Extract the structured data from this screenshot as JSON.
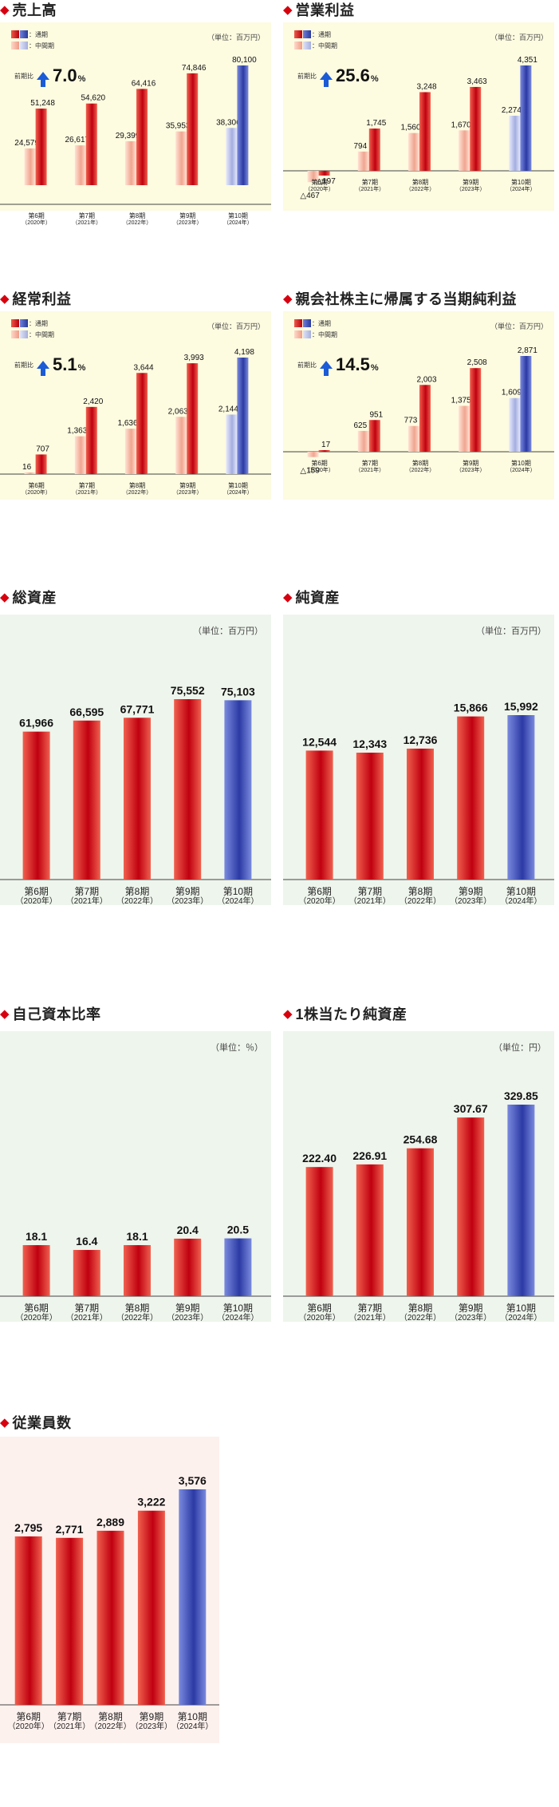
{
  "legend": {
    "full": "：通期",
    "interim": "：中間期"
  },
  "yoy_label": "前期比",
  "chart_data": [
    {
      "id": "sales",
      "type": "bar",
      "title": "売上高",
      "unit": "（単位：百万円）",
      "yoy": "7.0",
      "yoy_unit": "%",
      "categories": [
        "第6期",
        "第7期",
        "第8期",
        "第9期",
        "第10期"
      ],
      "category_years": [
        "（2020年）",
        "（2021年）",
        "（2022年）",
        "（2023年）",
        "（2024年）"
      ],
      "series": [
        {
          "name": "中間期",
          "values": [
            24579,
            26617,
            29399,
            35953,
            38306
          ],
          "labels": [
            "24,579",
            "26,617",
            "29,399",
            "35,953",
            "38,306"
          ]
        },
        {
          "name": "通期",
          "values": [
            51248,
            54620,
            64416,
            74846,
            80100
          ],
          "labels": [
            "51,248",
            "54,620",
            "64,416",
            "74,846",
            "80,100"
          ]
        }
      ],
      "ylim": [
        0,
        80100
      ]
    },
    {
      "id": "op",
      "type": "bar",
      "title": "営業利益",
      "unit": "（単位：百万円）",
      "yoy": "25.6",
      "yoy_unit": "%",
      "categories": [
        "第6期",
        "第7期",
        "第8期",
        "第9期",
        "第10期"
      ],
      "category_years": [
        "（2020年）",
        "（2021年）",
        "（2022年）",
        "（2023年）",
        "（2024年）"
      ],
      "series": [
        {
          "name": "中間期",
          "values": [
            -467,
            794,
            1560,
            1670,
            2274
          ],
          "labels": [
            "△467",
            "794",
            "1,560",
            "1,670",
            "2,274"
          ]
        },
        {
          "name": "通期",
          "values": [
            -197,
            1745,
            3248,
            3463,
            4351
          ],
          "labels": [
            "△197",
            "1,745",
            "3,248",
            "3,463",
            "4,351"
          ]
        }
      ],
      "ylim": [
        -467,
        4351
      ]
    },
    {
      "id": "ord",
      "type": "bar",
      "title": "経常利益",
      "unit": "（単位：百万円）",
      "yoy": "5.1",
      "yoy_unit": "%",
      "categories": [
        "第6期",
        "第7期",
        "第8期",
        "第9期",
        "第10期"
      ],
      "category_years": [
        "（2020年）",
        "（2021年）",
        "（2022年）",
        "（2023年）",
        "（2024年）"
      ],
      "series": [
        {
          "name": "中間期",
          "values": [
            16,
            1363,
            1636,
            2063,
            2144
          ],
          "labels": [
            "16",
            "1,363",
            "1,636",
            "2,063",
            "2,144"
          ]
        },
        {
          "name": "通期",
          "values": [
            707,
            2420,
            3644,
            3993,
            4198
          ],
          "labels": [
            "707",
            "2,420",
            "3,644",
            "3,993",
            "4,198"
          ]
        }
      ],
      "ylim": [
        0,
        4198
      ]
    },
    {
      "id": "net",
      "type": "bar",
      "title": "親会社株主に帰属する当期純利益",
      "unit": "（単位：百万円）",
      "yoy": "14.5",
      "yoy_unit": "%",
      "categories": [
        "第6期",
        "第7期",
        "第8期",
        "第9期",
        "第10期"
      ],
      "category_years": [
        "（2020年）",
        "（2021年）",
        "（2022年）",
        "（2023年）",
        "（2024年）"
      ],
      "series": [
        {
          "name": "中間期",
          "values": [
            -159,
            625,
            773,
            1375,
            1609
          ],
          "labels": [
            "△159",
            "625",
            "773",
            "1,375",
            "1,609"
          ]
        },
        {
          "name": "通期",
          "values": [
            17,
            951,
            2003,
            2508,
            2871
          ],
          "labels": [
            "17",
            "951",
            "2,003",
            "2,508",
            "2,871"
          ]
        }
      ],
      "ylim": [
        -159,
        2871
      ]
    },
    {
      "id": "assets",
      "type": "bar",
      "title": "総資産",
      "unit": "（単位：百万円）",
      "categories": [
        "第6期",
        "第7期",
        "第8期",
        "第9期",
        "第10期"
      ],
      "category_years": [
        "（2020年）",
        "（2021年）",
        "（2022年）",
        "（2023年）",
        "（2024年）"
      ],
      "values": [
        61966,
        66595,
        67771,
        75552,
        75103
      ],
      "labels": [
        "61,966",
        "66,595",
        "67,771",
        "75,552",
        "75,103"
      ],
      "ylim": [
        0,
        75552
      ]
    },
    {
      "id": "netassets",
      "type": "bar",
      "title": "純資産",
      "unit": "（単位：百万円）",
      "categories": [
        "第6期",
        "第7期",
        "第8期",
        "第9期",
        "第10期"
      ],
      "category_years": [
        "（2020年）",
        "（2021年）",
        "（2022年）",
        "（2023年）",
        "（2024年）"
      ],
      "values": [
        12544,
        12343,
        12736,
        15866,
        15992
      ],
      "labels": [
        "12,544",
        "12,343",
        "12,736",
        "15,866",
        "15,992"
      ],
      "ylim": [
        0,
        15992
      ]
    },
    {
      "id": "equity",
      "type": "bar",
      "title": "自己資本比率",
      "unit": "（単位：％）",
      "categories": [
        "第6期",
        "第7期",
        "第8期",
        "第9期",
        "第10期"
      ],
      "category_years": [
        "（2020年）",
        "（2021年）",
        "（2022年）",
        "（2023年）",
        "（2024年）"
      ],
      "values": [
        18.1,
        16.4,
        18.1,
        20.4,
        20.5
      ],
      "labels": [
        "18.1",
        "16.4",
        "18.1",
        "20.4",
        "20.5"
      ],
      "ylim": [
        0,
        60
      ]
    },
    {
      "id": "bps",
      "type": "bar",
      "title": "1株当たり純資産",
      "unit": "（単位：円）",
      "categories": [
        "第6期",
        "第7期",
        "第8期",
        "第9期",
        "第10期"
      ],
      "category_years": [
        "（2020年）",
        "（2021年）",
        "（2022年）",
        "（2023年）",
        "（2024年）"
      ],
      "values": [
        222.4,
        226.91,
        254.68,
        307.67,
        329.85
      ],
      "labels": [
        "222.40",
        "226.91",
        "254.68",
        "307.67",
        "329.85"
      ],
      "ylim": [
        0,
        329.85
      ]
    },
    {
      "id": "emp",
      "type": "bar",
      "title": "従業員数",
      "categories": [
        "第6期",
        "第7期",
        "第8期",
        "第9期",
        "第10期"
      ],
      "category_years": [
        "（2020年）",
        "（2021年）",
        "（2022年）",
        "（2023年）",
        "（2024年）"
      ],
      "values": [
        2795,
        2771,
        2889,
        3222,
        3576
      ],
      "labels": [
        "2,795",
        "2,771",
        "2,889",
        "3,222",
        "3,576"
      ],
      "ylim": [
        0,
        3576
      ]
    }
  ]
}
